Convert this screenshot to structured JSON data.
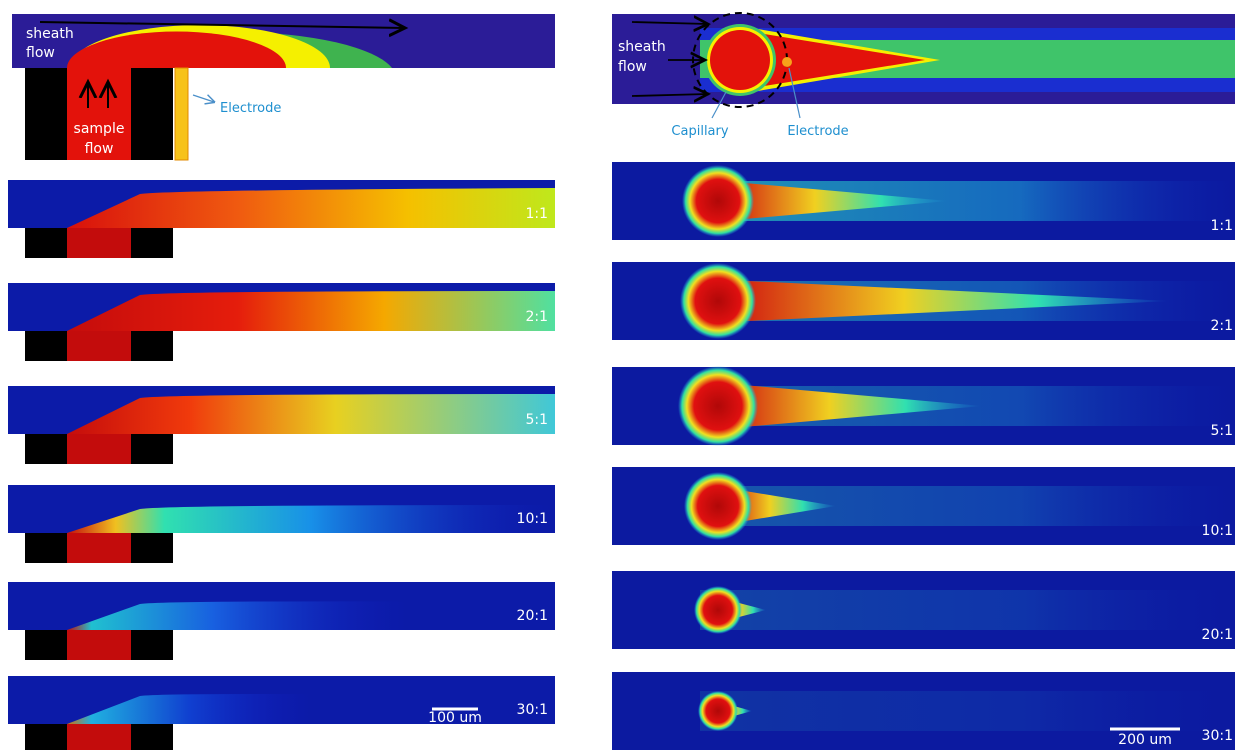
{
  "left": {
    "schematic": {
      "sheath": [
        "sheath",
        "flow"
      ],
      "sample": [
        "sample",
        "flow"
      ],
      "electrode": "Electrode"
    },
    "ratios": [
      "1:1",
      "2:1",
      "5:1",
      "10:1",
      "20:1",
      "30:1"
    ],
    "scale_bar": "100 um"
  },
  "right": {
    "schematic": {
      "sheath": [
        "sheath",
        "flow"
      ],
      "capillary": "Capillary",
      "electrode": "Electrode"
    },
    "ratios": [
      "1:1",
      "2:1",
      "5:1",
      "10:1",
      "20:1",
      "30:1"
    ],
    "scale_bar": "200 um"
  }
}
